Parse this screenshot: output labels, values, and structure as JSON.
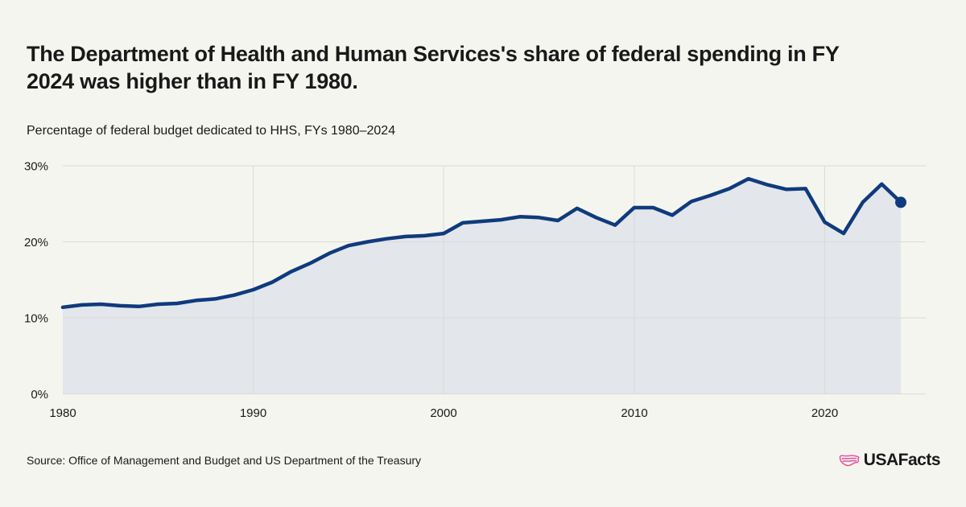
{
  "page": {
    "background_color": "#F5F5F0",
    "text_color": "#191919"
  },
  "header": {
    "title_line1": "The Department of Health and Human Services's share of federal spending in FY",
    "title_line2": "2024 was higher than in FY 1980.",
    "subtitle": "Percentage of federal budget dedicated to HHS, FYs 1980–2024"
  },
  "chart_data": {
    "type": "area",
    "title": "Percentage of federal budget dedicated to HHS, FYs 1980–2024",
    "x": [
      1980,
      1981,
      1982,
      1983,
      1984,
      1985,
      1986,
      1987,
      1988,
      1989,
      1990,
      1991,
      1992,
      1993,
      1994,
      1995,
      1996,
      1997,
      1998,
      1999,
      2000,
      2001,
      2002,
      2003,
      2004,
      2005,
      2006,
      2007,
      2008,
      2009,
      2010,
      2011,
      2012,
      2013,
      2014,
      2015,
      2016,
      2017,
      2018,
      2019,
      2020,
      2021,
      2022,
      2023,
      2024
    ],
    "series": [
      {
        "name": "Percentage of federal budget dedicated to HHS",
        "values": [
          11.4,
          11.7,
          11.8,
          11.6,
          11.5,
          11.8,
          11.9,
          12.3,
          12.5,
          13.0,
          13.7,
          14.7,
          16.1,
          17.2,
          18.5,
          19.5,
          20.0,
          20.4,
          20.7,
          20.8,
          21.1,
          22.5,
          22.7,
          22.9,
          23.3,
          23.2,
          22.8,
          24.4,
          23.2,
          22.2,
          24.5,
          24.5,
          23.5,
          25.3,
          26.1,
          27.0,
          28.3,
          27.5,
          26.9,
          27.0,
          22.6,
          21.1,
          25.2,
          27.6,
          25.2
        ]
      }
    ],
    "xlim": [
      1980,
      2024
    ],
    "ylim": [
      0,
      30
    ],
    "y_ticks": [
      "0%",
      "10%",
      "20%",
      "30%"
    ],
    "x_ticks": [
      "1980",
      "1990",
      "2000",
      "2010",
      "2020"
    ],
    "grid": true,
    "legend": false,
    "line_color": "#0F3B7D",
    "fill_color": "#E3E6EB",
    "end_dot": true,
    "end_dot_value": 25.2
  },
  "footer": {
    "source": "Source: Office of Management and Budget and US Department of the Treasury",
    "brand": "USAFacts",
    "brand_icon_color": "#E9519A"
  }
}
